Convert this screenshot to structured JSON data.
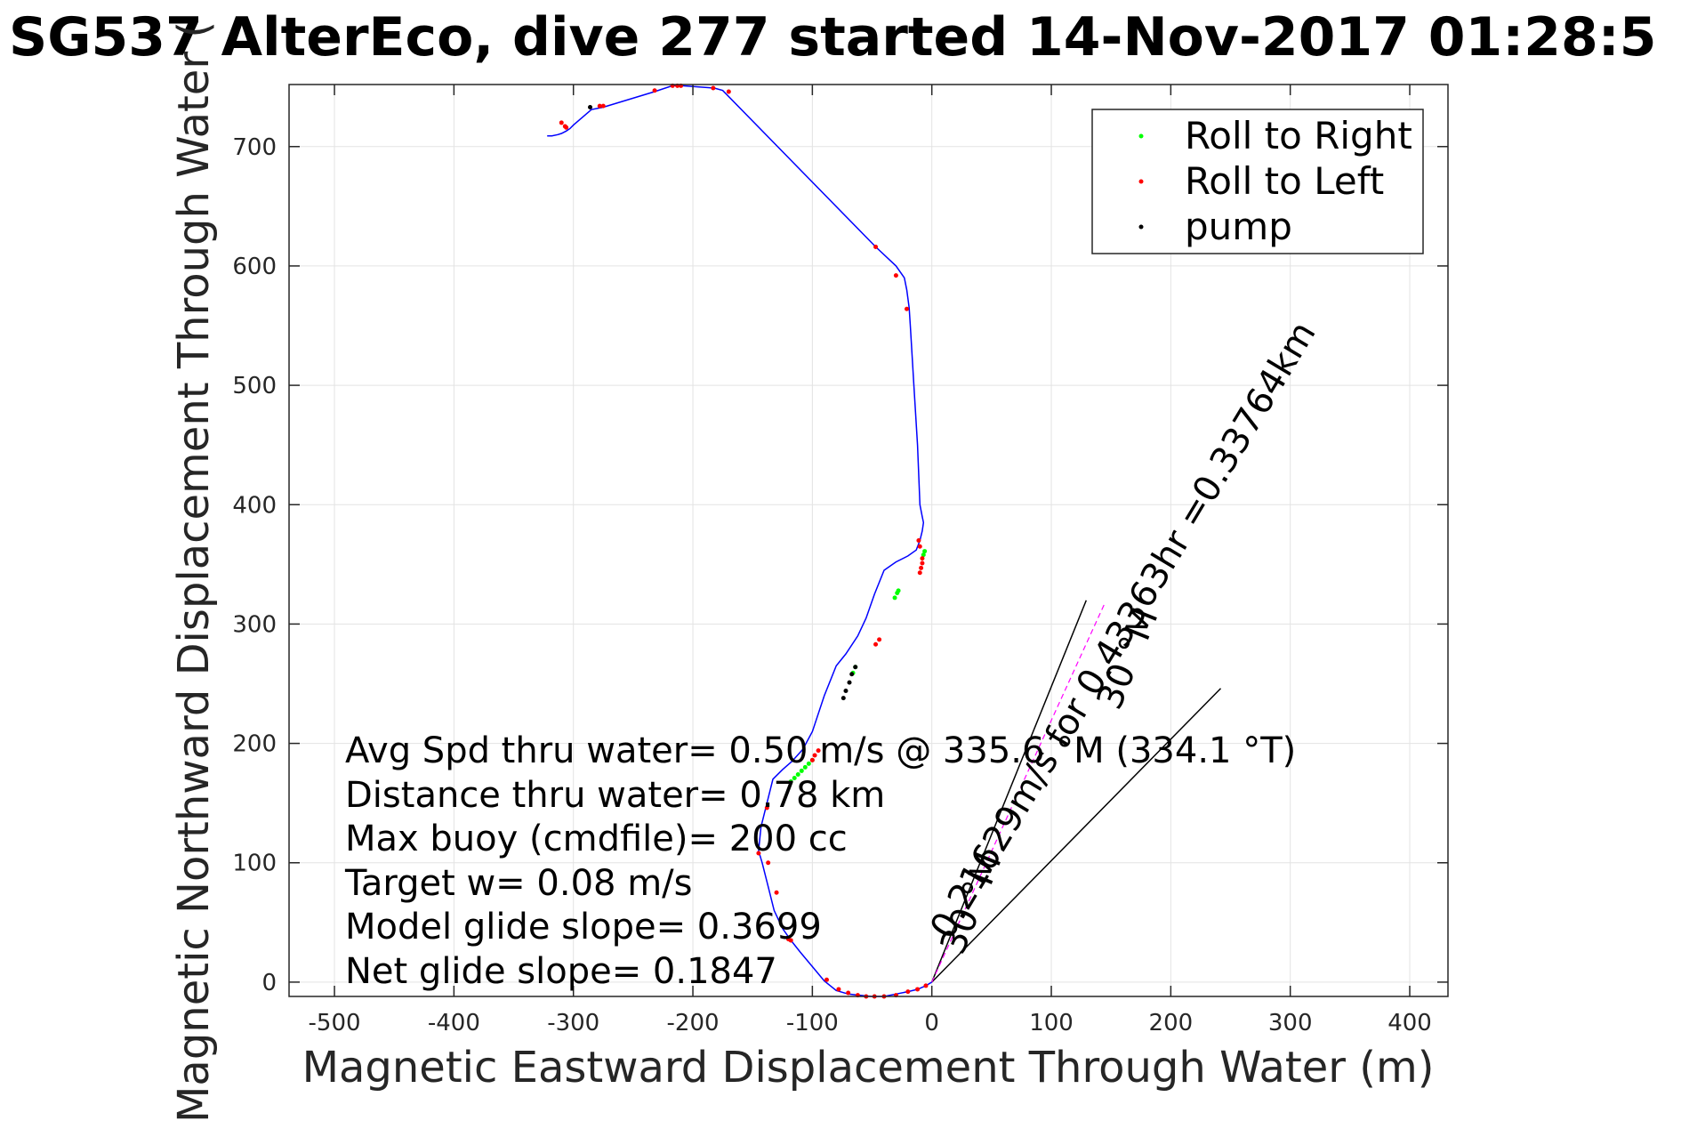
{
  "chart_data": {
    "type": "line",
    "title": "SG537 AlterEco, dive 277 started 14-Nov-2017 01:28:5",
    "xlabel": "Magnetic Eastward Displacement Through Water (m)",
    "ylabel": "Magnetic Northward Displacement Through Water (",
    "xlim": [
      -538,
      432
    ],
    "ylim": [
      -12,
      752
    ],
    "xticks": [
      -500,
      -400,
      -300,
      -200,
      -100,
      0,
      100,
      200,
      300,
      400
    ],
    "yticks": [
      0,
      100,
      200,
      300,
      400,
      500,
      600,
      700
    ],
    "grid": true,
    "legend_position": "top-right",
    "legend": [
      {
        "label": "Roll to Right",
        "color": "#00ff00"
      },
      {
        "label": "Roll to Left",
        "color": "#ff0000"
      },
      {
        "label": "pump",
        "color": "#000000"
      }
    ],
    "track": {
      "color": "#0000ff",
      "x": [
        0,
        -5,
        -12,
        -20,
        -30,
        -40,
        -50,
        -60,
        -70,
        -80,
        -90,
        -100,
        -110,
        -118,
        -125,
        -132,
        -137,
        -142,
        -145,
        -143,
        -138,
        -133,
        -125,
        -117,
        -108,
        -100,
        -90,
        -80,
        -72,
        -62,
        -55,
        -48,
        -40,
        -30,
        -20,
        -13,
        -10,
        -8,
        -7,
        -8,
        -10,
        -12,
        -15,
        -18,
        -19,
        -21,
        -23,
        -30,
        -47,
        -175,
        -182,
        -210,
        -217,
        -232,
        -275,
        -285,
        -300,
        -303,
        -306,
        -310,
        -313,
        -318,
        -322
      ],
      "y": [
        0,
        -3,
        -6,
        -8,
        -10,
        -12,
        -12,
        -11,
        -10,
        -7,
        1,
        13,
        25,
        35,
        45,
        60,
        80,
        100,
        110,
        130,
        150,
        170,
        178,
        185,
        195,
        210,
        240,
        265,
        275,
        290,
        305,
        325,
        345,
        352,
        357,
        362,
        370,
        378,
        385,
        390,
        400,
        450,
        500,
        550,
        565,
        580,
        590,
        600,
        616,
        747,
        749,
        751,
        751,
        746,
        733,
        731,
        718,
        715,
        713,
        711,
        710,
        709,
        709
      ]
    },
    "roll_to_right": {
      "x": [
        -118,
        -115,
        -112,
        -109,
        -106,
        -103,
        -100,
        -66,
        -64,
        -31,
        -29,
        -28,
        -7,
        -6
      ],
      "y": [
        168,
        171,
        174,
        177,
        180,
        183,
        186,
        259,
        264,
        322,
        326,
        328,
        358,
        361
      ]
    },
    "roll_to_left": {
      "x": [
        -88,
        -78,
        -70,
        -62,
        -55,
        -48,
        -40,
        -30,
        -20,
        -12,
        -5,
        -118,
        -120,
        -130,
        -137,
        -145,
        -138,
        -100,
        -98,
        -95,
        -47,
        -44,
        -10,
        -9,
        -8,
        -8,
        -10,
        -11,
        -21,
        -30,
        -47,
        -170,
        -183,
        -210,
        -213,
        -217,
        -232,
        -275,
        -278,
        -306,
        -307,
        -310
      ],
      "y": [
        2,
        -6,
        -9,
        -11,
        -12,
        -12,
        -12,
        -11,
        -8,
        -6,
        -3,
        35,
        36,
        75,
        100,
        108,
        146,
        186,
        190,
        194,
        283,
        287,
        343,
        347,
        351,
        355,
        365,
        370,
        564,
        592,
        616,
        746,
        749,
        751,
        751,
        751,
        747,
        734,
        734,
        716,
        717,
        720
      ]
    },
    "pump": {
      "x": [
        -286,
        -64,
        -67,
        -69,
        -72,
        -74
      ],
      "y": [
        733,
        264,
        258,
        251,
        244,
        238
      ]
    },
    "bearing_lines": [
      {
        "bearing_deg": 22,
        "length_m": 345
      },
      {
        "bearing_deg": 44.5,
        "length_m": 345
      }
    ],
    "bearing_labels": {
      "left": "30 °M",
      "right": "30 °M",
      "diagonal": "0.21629m/s for 0.43363hr =0.33764km"
    },
    "annotations": [
      "Avg Spd thru water=  0.50 m/s @ 335.6 °M (334.1 °T)",
      "Distance thru water=  0.78 km",
      "Max buoy (cmdfile)= 200 cc",
      "Target w= 0.08 m/s",
      "Model glide slope= 0.3699",
      "Net glide slope= 0.1847"
    ]
  }
}
